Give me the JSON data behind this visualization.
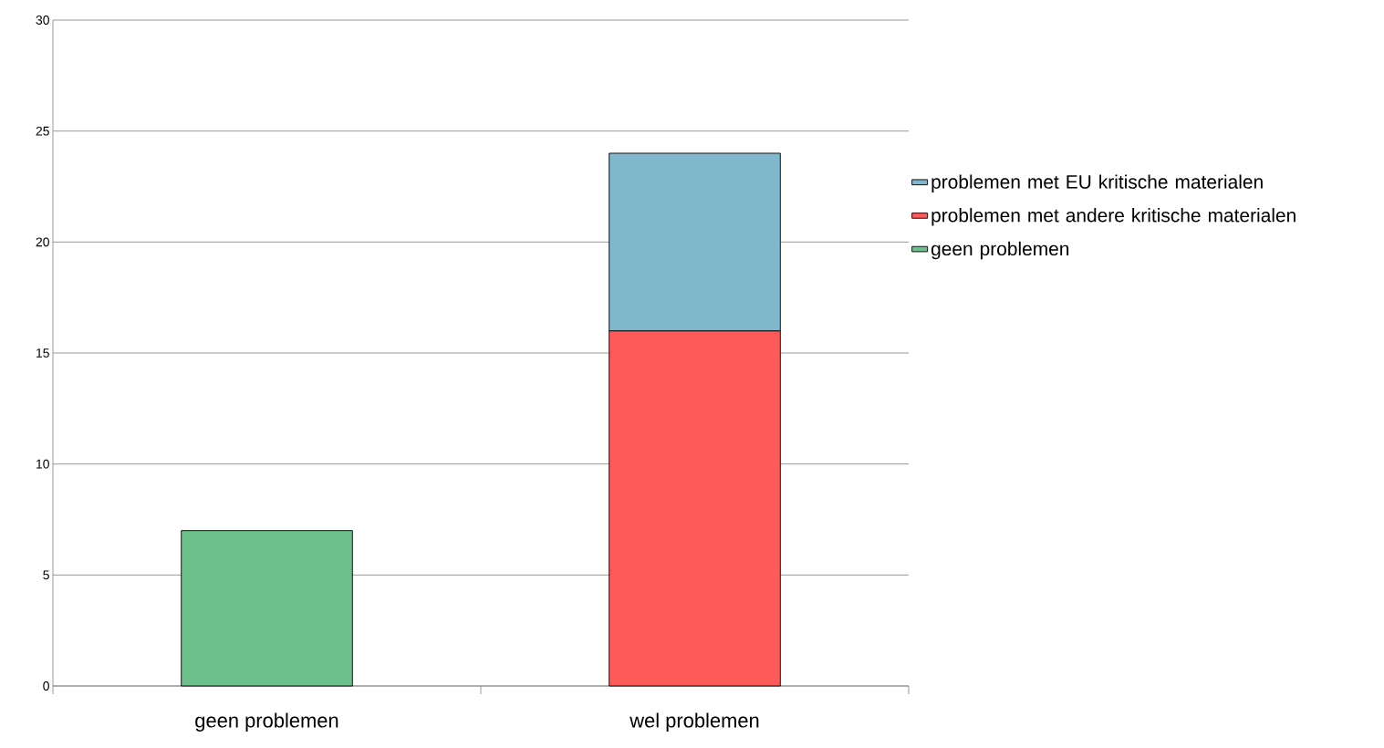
{
  "chart_data": {
    "type": "bar",
    "stacked": true,
    "categories": [
      "geen problemen",
      "wel problemen"
    ],
    "series": [
      {
        "name": "geen problemen",
        "color": "#6dc08b",
        "values": [
          7,
          null
        ]
      },
      {
        "name": "problemen met andere kritische materialen",
        "color": "#ff5a5a",
        "values": [
          null,
          16
        ]
      },
      {
        "name": "problemen met EU kritische materialen",
        "color": "#80b7cc",
        "values": [
          null,
          8
        ]
      }
    ],
    "ylim": [
      0,
      30
    ],
    "yticks": [
      0,
      5,
      10,
      15,
      20,
      25,
      30
    ],
    "grid": "y",
    "legend": "right"
  }
}
